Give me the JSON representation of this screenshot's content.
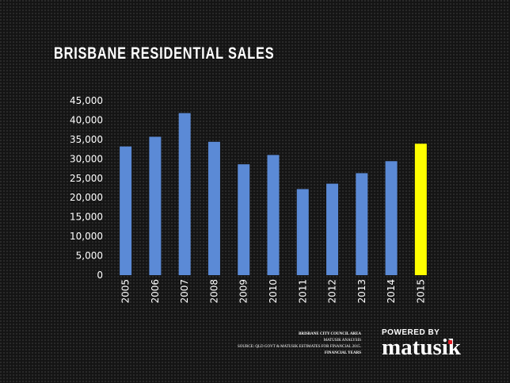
{
  "title": "BRISBANE RESIDENTIAL SALES",
  "chart_data": {
    "type": "bar",
    "categories": [
      "2005",
      "2006",
      "2007",
      "2008",
      "2009",
      "2010",
      "2011",
      "2012",
      "2013",
      "2014",
      "2015"
    ],
    "values": [
      33200,
      35700,
      41800,
      34400,
      28600,
      31000,
      22200,
      23600,
      26300,
      29400,
      33900
    ],
    "highlight_index": 10,
    "bar_color": "#5b8ad6",
    "highlight_color": "#ffff00",
    "ylim": [
      0,
      45000
    ],
    "yticks": [
      0,
      5000,
      10000,
      15000,
      20000,
      25000,
      30000,
      35000,
      40000,
      45000
    ],
    "ytick_labels": [
      "0",
      "5,000",
      "10,000",
      "15,000",
      "20,000",
      "25,000",
      "30,000",
      "35,000",
      "40,000",
      "45,000"
    ],
    "grid": false,
    "legend": "none",
    "xlabel": "",
    "ylabel": ""
  },
  "source": {
    "line1": "BRISBANE CITY COUNCIL AREA",
    "line2": "MATUSIK ANALYSIS",
    "line3": "SOURCE: QLD GOVT & MATUSIK ESTIMATES FOR FINANCIAL 2015.",
    "line4": "FINANCIAL YEARS"
  },
  "brand": {
    "powered_by": "POWERED BY",
    "name": "matusik",
    "accent_color": "#e31b23"
  }
}
